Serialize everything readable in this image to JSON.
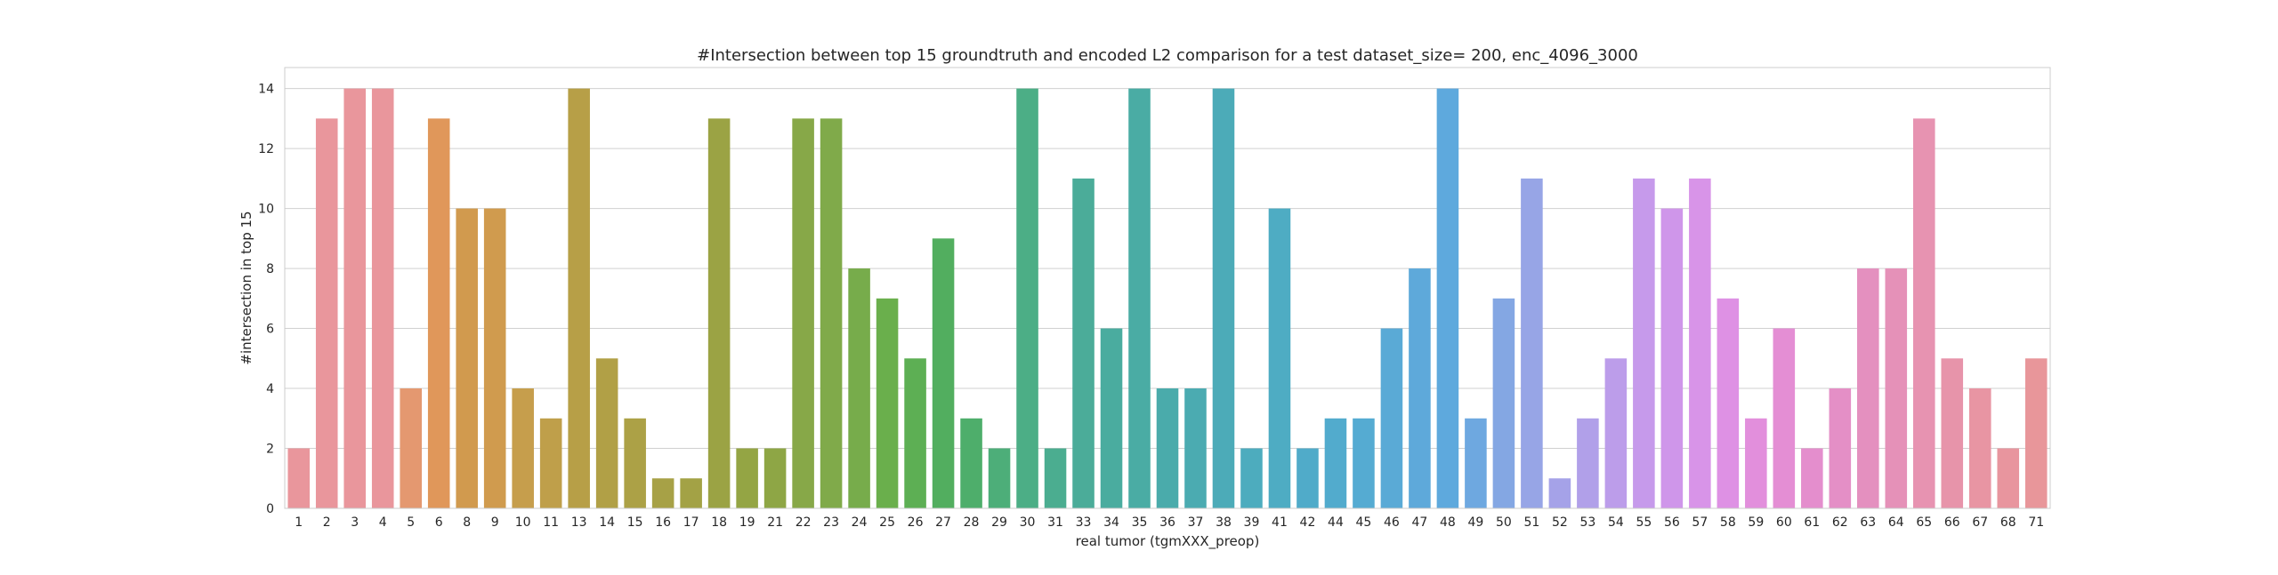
{
  "chart_data": {
    "type": "bar",
    "title": "#Intersection between top 15 groundtruth and encoded L2 comparison for a test dataset_size= 200, enc_4096_3000",
    "xlabel": "real tumor (tgmXXX_preop)",
    "ylabel": "#intersection in top 15",
    "ylim": [
      0,
      14.7
    ],
    "yticks": [
      0,
      2,
      4,
      6,
      8,
      10,
      12,
      14
    ],
    "grid": true,
    "legend": "none",
    "categories": [
      "1",
      "2",
      "3",
      "4",
      "5",
      "6",
      "8",
      "9",
      "10",
      "11",
      "13",
      "14",
      "15",
      "16",
      "17",
      "18",
      "19",
      "21",
      "22",
      "23",
      "24",
      "25",
      "26",
      "27",
      "28",
      "29",
      "30",
      "31",
      "33",
      "34",
      "35",
      "36",
      "37",
      "38",
      "39",
      "41",
      "42",
      "44",
      "45",
      "46",
      "47",
      "48",
      "49",
      "50",
      "51",
      "52",
      "53",
      "54",
      "55",
      "56",
      "57",
      "58",
      "59",
      "60",
      "61",
      "62",
      "63",
      "64",
      "65",
      "66",
      "67",
      "68",
      "71"
    ],
    "values": [
      2,
      13,
      14,
      14,
      4,
      13,
      10,
      10,
      4,
      3,
      14,
      5,
      3,
      1,
      1,
      13,
      2,
      2,
      13,
      13,
      8,
      7,
      5,
      9,
      3,
      2,
      14,
      2,
      11,
      6,
      14,
      4,
      4,
      14,
      2,
      10,
      2,
      3,
      3,
      6,
      8,
      14,
      3,
      7,
      11,
      1,
      3,
      5,
      11,
      10,
      11,
      7,
      3,
      6,
      2,
      4,
      8,
      8,
      13,
      5,
      4,
      2,
      5
    ],
    "colors": [
      "#e9969c",
      "#e9969c",
      "#e9969c",
      "#e9969c",
      "#e49870",
      "#e0975a",
      "#d19a4e",
      "#d09b4e",
      "#c69e4c",
      "#bf9f4a",
      "#b79f47",
      "#b1a046",
      "#aca146",
      "#a7a146",
      "#a3a245",
      "#9ba344",
      "#94a544",
      "#8ea645",
      "#87a848",
      "#80aa4a",
      "#77ac4b",
      "#6aaf4c",
      "#5daf54",
      "#52ae5f",
      "#4eae6b",
      "#4dae79",
      "#4cae86",
      "#4bad90",
      "#4bac99",
      "#4aac9f",
      "#4aaca4",
      "#4aabab",
      "#4babb1",
      "#4cabb8",
      "#4dacbe",
      "#4eacc3",
      "#50abc9",
      "#52abcd",
      "#55abd2",
      "#5aaad6",
      "#5ea9da",
      "#5ea9dd",
      "#6ea8e0",
      "#84a7e3",
      "#97a5e6",
      "#a5a2e8",
      "#b1a0e9",
      "#bc9dea",
      "#c69aeb",
      "#cf96ea",
      "#d894e8",
      "#de91e4",
      "#e28fdc",
      "#e48ed4",
      "#e48ecd",
      "#e48fc6",
      "#e490bf",
      "#e591b8",
      "#e793b1",
      "#e794aa",
      "#e895a3",
      "#e8959e",
      "#e8969a"
    ]
  }
}
